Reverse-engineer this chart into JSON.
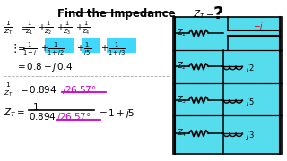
{
  "title": "Find the Impedance",
  "bg_color": "#ffffff",
  "text_color": "#000000",
  "cyan_color": "#00ccff",
  "magenta_color": "#cc00cc",
  "red_color": "#dd0000",
  "circuit_bg": "#55ddee"
}
